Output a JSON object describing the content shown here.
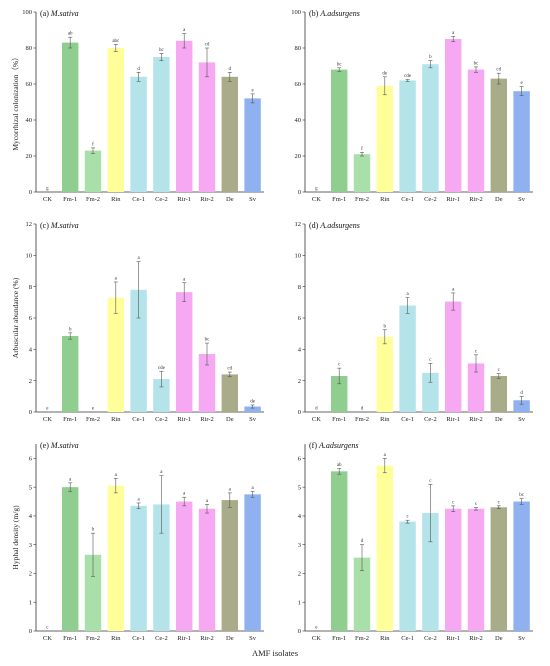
{
  "x_axis_label": "AMF isolates",
  "palette": {
    "CK": "#d9d9d9",
    "Fm-1": "#8fce8f",
    "Fm-2": "#a9dfa9",
    "Rin": "#ffff99",
    "Ce-1": "#b4e4ea",
    "Ce-2": "#b4e4ea",
    "Rir-1": "#f7a8f2",
    "Rir-2": "#f7a8f2",
    "De": "#a9ac88",
    "Sv": "#8fb1f0"
  },
  "chart_data": [
    {
      "type": "bar",
      "panel_label": "(a)",
      "species": "M.sativa",
      "ylabel": "Mycorrhizal colonization（%）",
      "ylim": [
        0,
        100
      ],
      "yticks": [
        0,
        20,
        40,
        60,
        80,
        100
      ],
      "categories": [
        "CK",
        "Fm-1",
        "Fm-2",
        "Rin",
        "Ce-1",
        "Ce-2",
        "Rir-1",
        "Rir-2",
        "De",
        "Sv"
      ],
      "values": [
        0,
        83,
        23,
        80,
        64,
        75,
        84,
        72,
        64,
        52
      ],
      "errors": [
        0,
        3,
        1.5,
        2,
        2.5,
        2,
        4,
        8,
        2.5,
        2.5
      ],
      "letters": [
        "g",
        "ab",
        "f",
        "abc",
        "d",
        "bc",
        "a",
        "cd",
        "d",
        "e"
      ]
    },
    {
      "type": "bar",
      "panel_label": "(b)",
      "species": "A.adsurgens",
      "ylabel": "",
      "ylim": [
        0,
        100
      ],
      "yticks": [
        0,
        20,
        40,
        60,
        80,
        100
      ],
      "categories": [
        "CK",
        "Fm-1",
        "Fm-2",
        "Rin",
        "Ce-1",
        "Ce-2",
        "Rir-1",
        "Rir-2",
        "De",
        "Sv"
      ],
      "values": [
        0,
        68,
        21,
        59,
        62,
        71,
        85,
        68,
        63,
        56
      ],
      "errors": [
        0,
        1,
        1,
        5,
        0.5,
        2,
        1.5,
        1.5,
        3,
        2.5
      ],
      "letters": [
        "g",
        "bc",
        "f",
        "de",
        "cde",
        "b",
        "a",
        "bc",
        "cd",
        "e"
      ]
    },
    {
      "type": "bar",
      "panel_label": "(c)",
      "species": "M.sativa",
      "ylabel": "Arbuscular abundance (%)",
      "ylim": [
        0,
        12
      ],
      "yticks": [
        0,
        2,
        4,
        6,
        8,
        10,
        12
      ],
      "categories": [
        "CK",
        "Fm-1",
        "Fm-2",
        "Rin",
        "Ce-1",
        "Ce-2",
        "Rir-1",
        "Rir-2",
        "De",
        "Sv"
      ],
      "values": [
        0,
        4.85,
        0,
        7.3,
        7.8,
        2.1,
        7.65,
        3.7,
        2.4,
        0.35
      ],
      "errors": [
        0,
        0.2,
        0,
        1.0,
        1.8,
        0.5,
        0.6,
        0.7,
        0.15,
        0.1
      ],
      "letters": [
        "e",
        "b",
        "e",
        "a",
        "a",
        "cde",
        "a",
        "bc",
        "cd",
        "de"
      ]
    },
    {
      "type": "bar",
      "panel_label": "(d)",
      "species": "A.adsurgens",
      "ylabel": "",
      "ylim": [
        0,
        12
      ],
      "yticks": [
        0,
        2,
        4,
        6,
        8,
        10,
        12
      ],
      "categories": [
        "CK",
        "Fm-1",
        "Fm-2",
        "Rin",
        "Ce-1",
        "Ce-2",
        "Rir-1",
        "Rir-2",
        "De",
        "Sv"
      ],
      "values": [
        0,
        2.3,
        0,
        4.8,
        6.8,
        2.5,
        7.05,
        3.1,
        2.3,
        0.75
      ],
      "errors": [
        0,
        0.5,
        0,
        0.45,
        0.5,
        0.6,
        0.55,
        0.55,
        0.15,
        0.25
      ],
      "letters": [
        "d",
        "c",
        "d",
        "b",
        "a",
        "c",
        "a",
        "c",
        "c",
        "d"
      ]
    },
    {
      "type": "bar",
      "panel_label": "(e)",
      "species": "M.sativa",
      "ylabel": "Hyphal density (m/g)",
      "ylim": [
        0,
        6.5
      ],
      "yticks": [
        0,
        1,
        2,
        3,
        4,
        5,
        6
      ],
      "categories": [
        "CK",
        "Fm-1",
        "Fm-2",
        "Rin",
        "Ce-1",
        "Ce-2",
        "Rir-1",
        "Rir-2",
        "De",
        "Sv"
      ],
      "values": [
        0,
        5.0,
        2.65,
        5.05,
        4.35,
        4.4,
        4.5,
        4.25,
        4.55,
        4.75
      ],
      "errors": [
        0,
        0.15,
        0.75,
        0.25,
        0.1,
        1.0,
        0.15,
        0.15,
        0.25,
        0.1
      ],
      "letters": [
        "c",
        "a",
        "b",
        "a",
        "a",
        "a",
        "a",
        "a",
        "a",
        "a"
      ]
    },
    {
      "type": "bar",
      "panel_label": "(f)",
      "species": "A.adsurgens",
      "ylabel": "",
      "ylim": [
        0,
        6.5
      ],
      "yticks": [
        0,
        1,
        2,
        3,
        4,
        5,
        6
      ],
      "categories": [
        "CK",
        "Fm-1",
        "Fm-2",
        "Rin",
        "Ce-1",
        "Ce-2",
        "Rir-1",
        "Rir-2",
        "De",
        "Sv"
      ],
      "values": [
        0,
        5.55,
        2.55,
        5.75,
        3.8,
        4.1,
        4.25,
        4.25,
        4.3,
        4.5
      ],
      "errors": [
        0,
        0.1,
        0.45,
        0.25,
        0.05,
        1.0,
        0.1,
        0.05,
        0.05,
        0.1
      ],
      "letters": [
        "e",
        "ab",
        "d",
        "a",
        "c",
        "c",
        "c",
        "c",
        "c",
        "bc"
      ]
    }
  ]
}
